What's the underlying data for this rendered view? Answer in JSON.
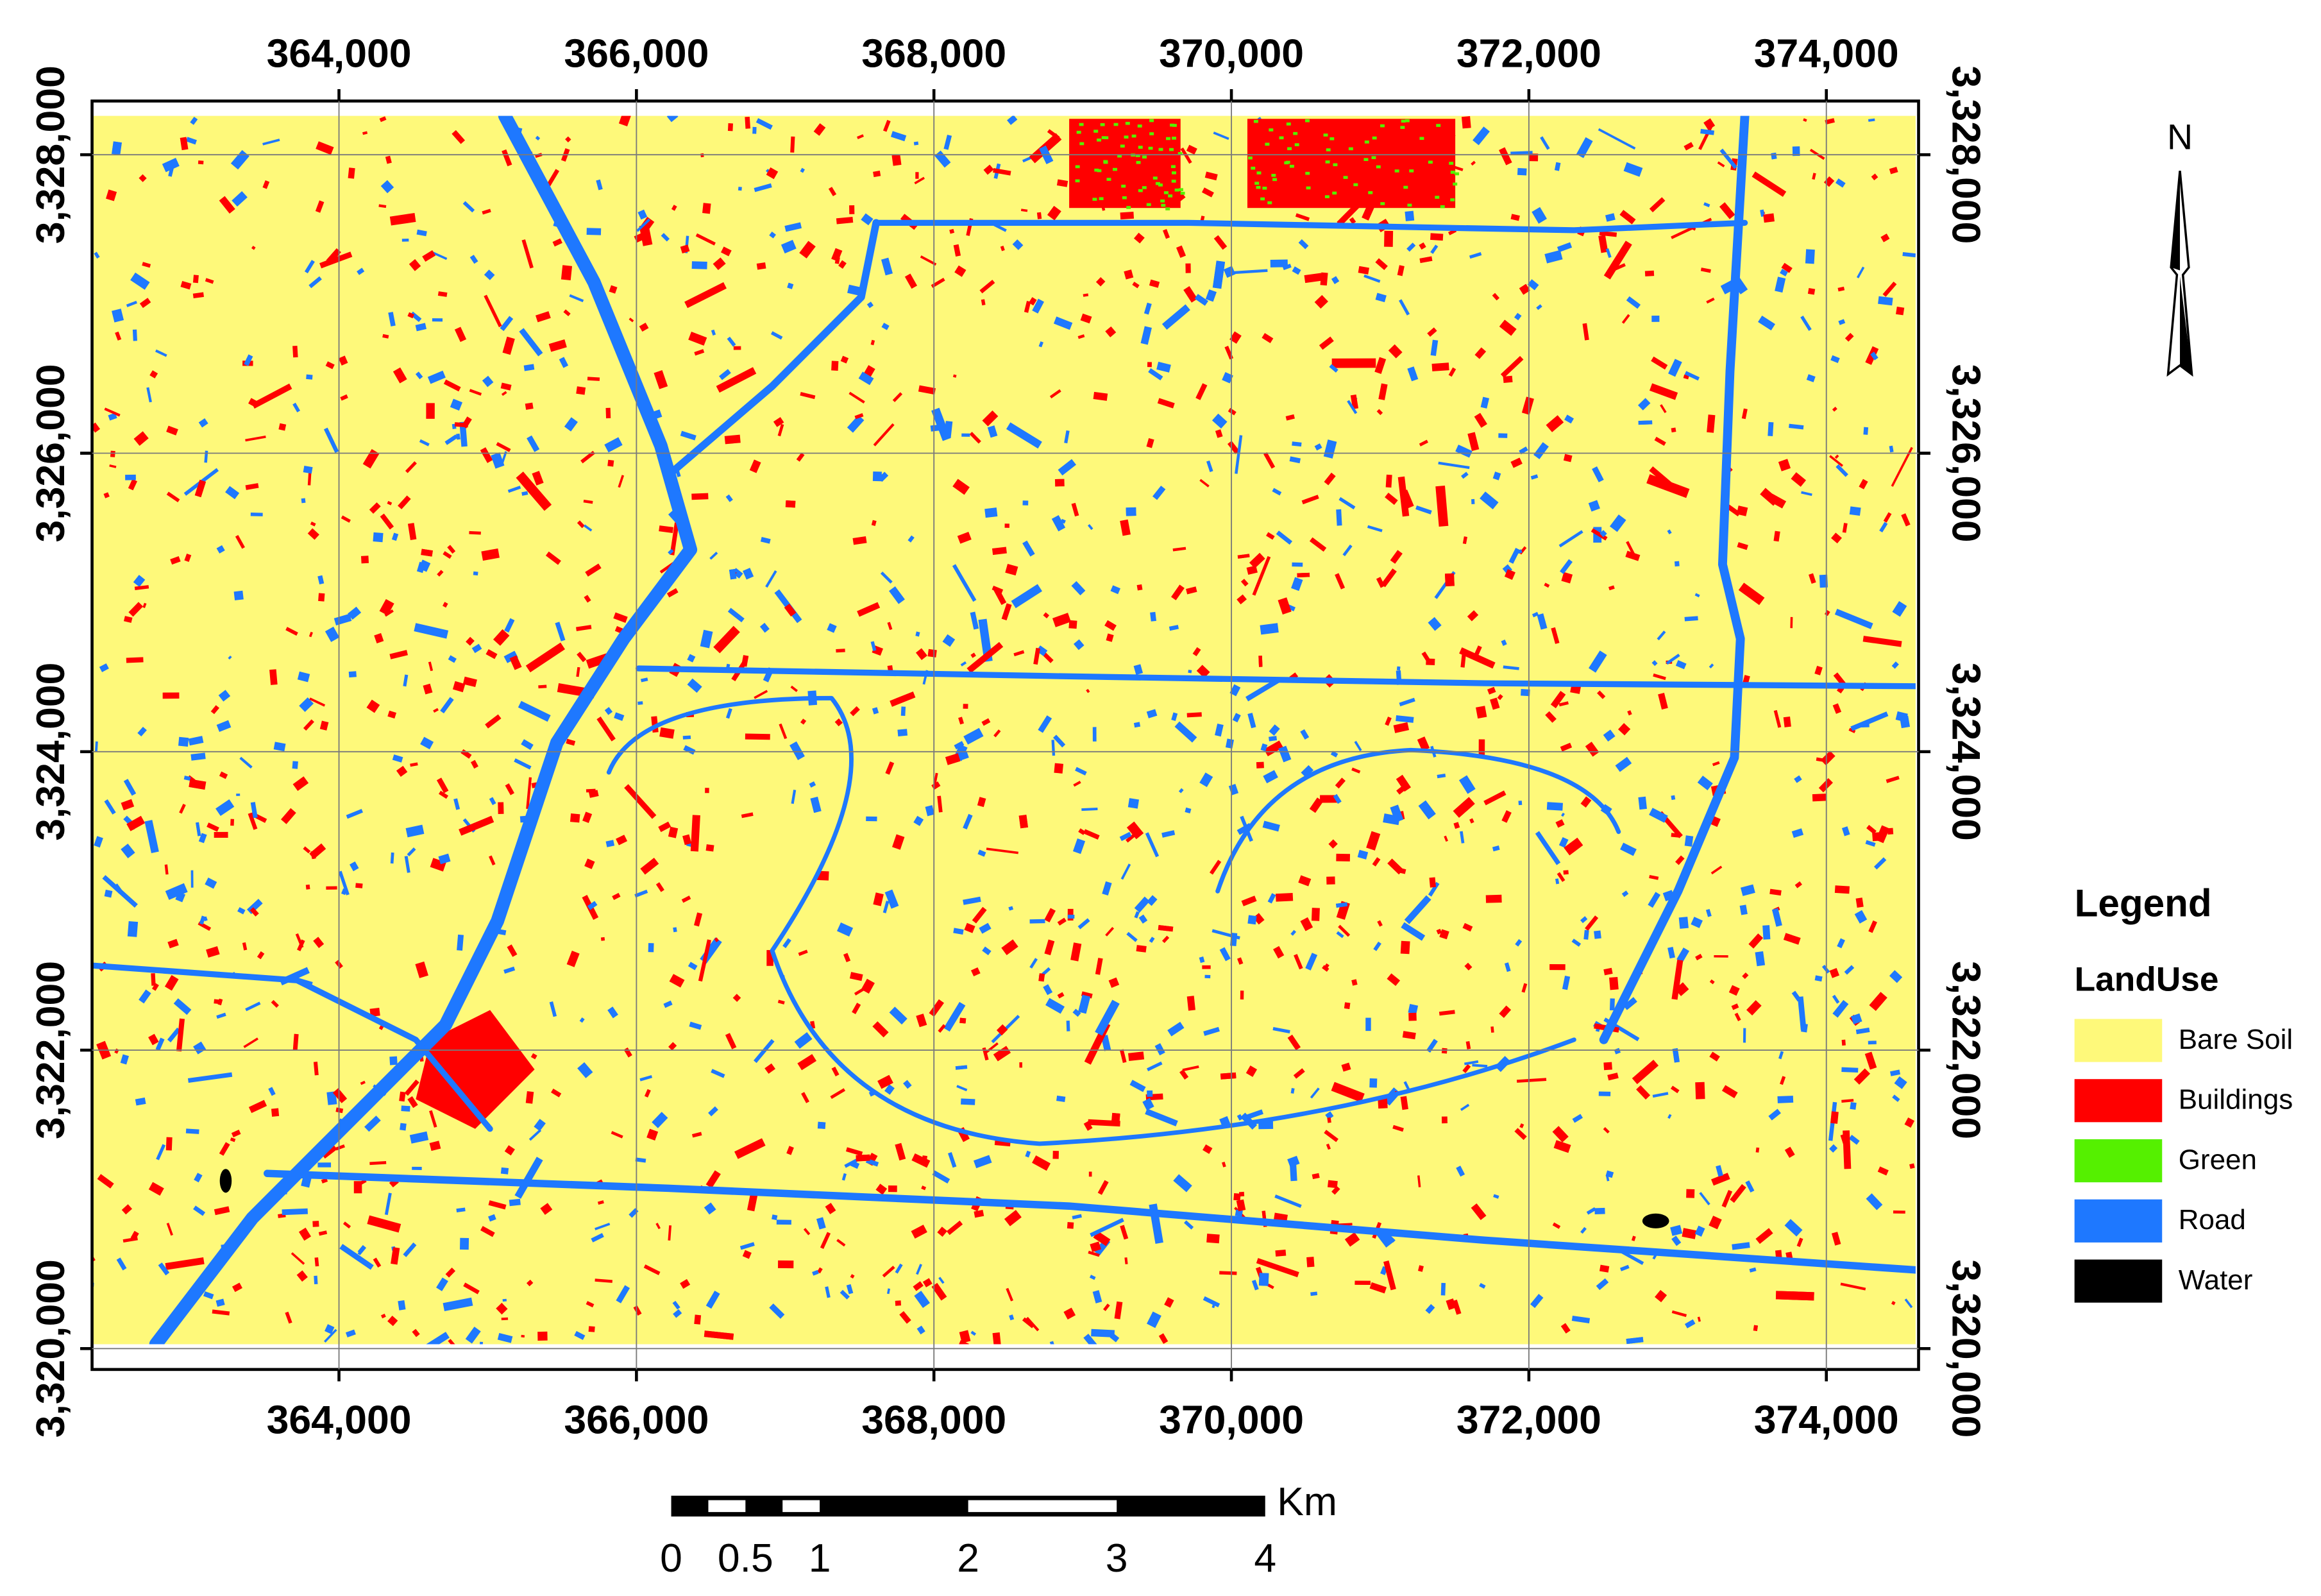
{
  "map": {
    "x_axis": {
      "xlim": [
        362340,
        374620
      ],
      "ticks": [
        {
          "value": 364000,
          "label": "364,000"
        },
        {
          "value": 366000,
          "label": "366,000"
        },
        {
          "value": 368000,
          "label": "368,000"
        },
        {
          "value": 370000,
          "label": "370,000"
        },
        {
          "value": 372000,
          "label": "372,000"
        },
        {
          "value": 374000,
          "label": "374,000"
        }
      ]
    },
    "y_axis": {
      "ylim": [
        3319860,
        3328360
      ],
      "ticks": [
        {
          "value": 3320000,
          "label": "3,320,000"
        },
        {
          "value": 3322000,
          "label": "3,322,000"
        },
        {
          "value": 3324000,
          "label": "3,324,000"
        },
        {
          "value": 3326000,
          "label": "3,326,000"
        },
        {
          "value": 3328000,
          "label": "3,328,000"
        }
      ]
    },
    "grid": true
  },
  "legend": {
    "title": "Legend",
    "subtitle": "LandUse",
    "items": [
      {
        "label": "Bare Soil",
        "color": "#fef97a"
      },
      {
        "label": "Buildings",
        "color": "#ff0000"
      },
      {
        "label": "Green",
        "color": "#55f000"
      },
      {
        "label": "Road",
        "color": "#1e78ff"
      },
      {
        "label": "Water",
        "color": "#000000"
      }
    ]
  },
  "north_arrow": {
    "label": "N"
  },
  "scale_bar": {
    "ticks": [
      0,
      0.5,
      1,
      2,
      3,
      4
    ],
    "unit": "Km"
  }
}
